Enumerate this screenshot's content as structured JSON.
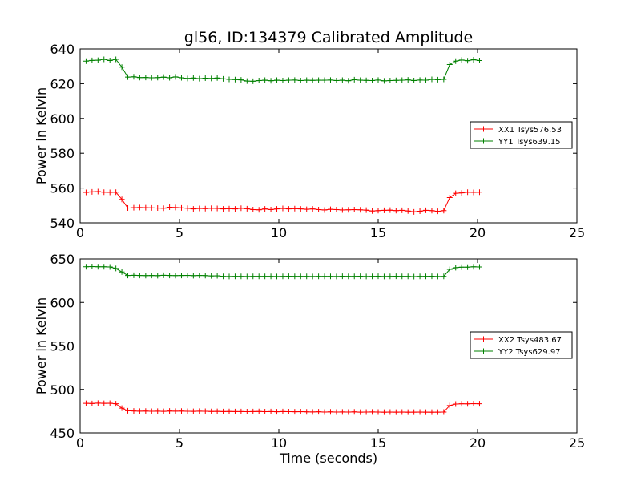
{
  "title": "gl56, ID:134379 Calibrated Amplitude",
  "colors": {
    "XX": "#ff0000",
    "YY": "#008000"
  },
  "chart_data": [
    {
      "type": "line",
      "ylabel": "Power in Kelvin",
      "xlabel": "",
      "xlim": [
        0,
        25
      ],
      "ylim": [
        540,
        640
      ],
      "xticks": [
        0,
        5,
        10,
        15,
        20,
        25
      ],
      "yticks": [
        540,
        560,
        580,
        600,
        620,
        640
      ],
      "legend_position": "center-right",
      "x": [
        0.3,
        0.6,
        0.9,
        1.2,
        1.5,
        1.8,
        2.1,
        2.4,
        2.7,
        3.0,
        3.3,
        3.6,
        3.9,
        4.2,
        4.5,
        4.8,
        5.1,
        5.4,
        5.7,
        6.0,
        6.3,
        6.6,
        6.9,
        7.2,
        7.5,
        7.8,
        8.1,
        8.4,
        8.7,
        9.0,
        9.3,
        9.6,
        9.9,
        10.2,
        10.5,
        10.8,
        11.1,
        11.4,
        11.7,
        12.0,
        12.3,
        12.6,
        12.9,
        13.2,
        13.5,
        13.8,
        14.1,
        14.4,
        14.7,
        15.0,
        15.3,
        15.6,
        15.9,
        16.2,
        16.5,
        16.8,
        17.1,
        17.4,
        17.7,
        18.0,
        18.3,
        18.6,
        18.9,
        19.2,
        19.5,
        19.8,
        20.1
      ],
      "series": [
        {
          "name": "XX1 Tsys576.53",
          "color": "#ff0000",
          "values": [
            557.5,
            557.8,
            558,
            557.6,
            557.5,
            557.6,
            553.5,
            548.5,
            548.7,
            548.8,
            548.7,
            548.6,
            548.5,
            548.4,
            549,
            548.8,
            548.6,
            548.4,
            548,
            548.3,
            548.2,
            548.4,
            548.3,
            548,
            548.2,
            548,
            548.4,
            548.1,
            547.6,
            547.5,
            548,
            547.6,
            548,
            548.3,
            548,
            548.2,
            548,
            547.8,
            548,
            547.6,
            547.4,
            547.8,
            547.6,
            547.4,
            547.5,
            547.6,
            547.5,
            547.3,
            546.8,
            547,
            547.2,
            547.3,
            547,
            547.2,
            546.8,
            546.3,
            546.7,
            547.2,
            547,
            546.6,
            547,
            554.5,
            557,
            557.2,
            557.6,
            557.5,
            557.6
          ]
        },
        {
          "name": "YY1 Tsys639.15",
          "color": "#008000",
          "values": [
            633,
            633.4,
            633.5,
            634,
            633.3,
            634,
            629.5,
            623.8,
            624,
            623.5,
            623.6,
            623.4,
            623.5,
            623.8,
            623.4,
            623.9,
            623.4,
            623,
            623.3,
            622.9,
            623.2,
            623,
            623.3,
            622.8,
            622.5,
            622.4,
            622.2,
            621.5,
            621.4,
            621.8,
            622,
            621.7,
            622,
            621.8,
            622,
            622.1,
            621.8,
            622,
            621.9,
            622,
            622,
            622.1,
            621.8,
            622,
            621.7,
            622.3,
            622,
            621.9,
            621.8,
            622.1,
            621.6,
            621.8,
            621.9,
            622,
            622.2,
            621.8,
            622.1,
            622,
            622.5,
            622.3,
            622.5,
            631,
            633,
            633.6,
            633.2,
            633.8,
            633.3
          ]
        }
      ]
    },
    {
      "type": "line",
      "ylabel": "Power in Kelvin",
      "xlabel": "Time (seconds)",
      "xlim": [
        0,
        25
      ],
      "ylim": [
        450,
        650
      ],
      "xticks": [
        0,
        5,
        10,
        15,
        20,
        25
      ],
      "yticks": [
        450,
        500,
        550,
        600,
        650
      ],
      "legend_position": "center-right",
      "x": [
        0.3,
        0.6,
        0.9,
        1.2,
        1.5,
        1.8,
        2.1,
        2.4,
        2.7,
        3.0,
        3.3,
        3.6,
        3.9,
        4.2,
        4.5,
        4.8,
        5.1,
        5.4,
        5.7,
        6.0,
        6.3,
        6.6,
        6.9,
        7.2,
        7.5,
        7.8,
        8.1,
        8.4,
        8.7,
        9.0,
        9.3,
        9.6,
        9.9,
        10.2,
        10.5,
        10.8,
        11.1,
        11.4,
        11.7,
        12.0,
        12.3,
        12.6,
        12.9,
        13.2,
        13.5,
        13.8,
        14.1,
        14.4,
        14.7,
        15.0,
        15.3,
        15.6,
        15.9,
        16.2,
        16.5,
        16.8,
        17.1,
        17.4,
        17.7,
        18.0,
        18.3,
        18.6,
        18.9,
        19.2,
        19.5,
        19.8,
        20.1
      ],
      "series": [
        {
          "name": "XX2 Tsys483.67",
          "color": "#ff0000",
          "values": [
            484,
            483.8,
            484.2,
            484,
            484.1,
            483.5,
            478.5,
            475.5,
            475.2,
            475,
            475.1,
            474.9,
            475,
            474.8,
            475.2,
            475,
            475.1,
            474.9,
            474.8,
            475,
            474.9,
            474.6,
            474.8,
            474.5,
            474.6,
            474.5,
            474.5,
            474.4,
            474.5,
            474.6,
            474.4,
            474.5,
            474.3,
            474.5,
            474.4,
            474.3,
            474.4,
            474.2,
            474.1,
            474.3,
            474,
            474.2,
            474,
            474.1,
            474,
            474.2,
            473.9,
            474,
            474.1,
            474,
            473.8,
            474,
            473.9,
            474,
            473.8,
            473.9,
            474,
            473.9,
            473.8,
            473.9,
            474,
            481.5,
            483.2,
            483.5,
            483.4,
            483.6,
            483.5
          ]
        },
        {
          "name": "YY2 Tsys629.97",
          "color": "#008000",
          "values": [
            641,
            641.2,
            641,
            641,
            640.8,
            639,
            635,
            631,
            631.2,
            631,
            630.9,
            631,
            630.8,
            631.2,
            631,
            630.9,
            631,
            631.1,
            630.8,
            631,
            630.9,
            630.5,
            630.6,
            630,
            629.8,
            630,
            629.9,
            629.8,
            629.9,
            630,
            629.9,
            630,
            629.8,
            630,
            630.1,
            629.9,
            630,
            630,
            629.8,
            630,
            629.9,
            630,
            629.8,
            630.1,
            630,
            629.9,
            630.1,
            629.8,
            630,
            630.1,
            629.8,
            630,
            630.1,
            629.9,
            630,
            629.7,
            630,
            629.9,
            630.1,
            629.8,
            630,
            638,
            640,
            640.5,
            640.6,
            641,
            640.8
          ]
        }
      ]
    }
  ]
}
